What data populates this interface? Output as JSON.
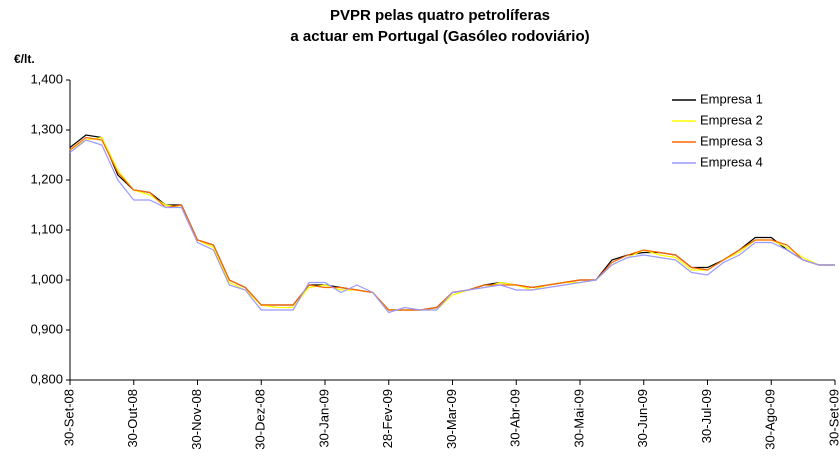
{
  "chart_data": {
    "type": "line",
    "title": "PVPR pelas quatro petrolíferas",
    "subtitle": "a actuar em Portugal (Gasóleo rodoviário)",
    "y_label": "€/lt.",
    "categories": [
      "30-Set-08",
      null,
      null,
      null,
      "30-Out-08",
      null,
      null,
      null,
      "30-Nov-08",
      null,
      null,
      null,
      "30-Dez-08",
      null,
      null,
      null,
      "30-Jan-09",
      null,
      null,
      null,
      "28-Fev-09",
      null,
      null,
      null,
      "30-Mar-09",
      null,
      null,
      null,
      "30-Abr-09",
      null,
      null,
      null,
      "30-Mai-09",
      null,
      null,
      null,
      "30-Jun-09",
      null,
      null,
      null,
      "30-Jul-09",
      null,
      null,
      null,
      "30-Ago-09",
      null,
      null,
      null,
      "30-Set-09"
    ],
    "series": [
      {
        "name": "Empresa 1",
        "color": "#000000",
        "values": [
          1.265,
          1.29,
          1.285,
          1.21,
          1.18,
          1.175,
          1.15,
          1.15,
          1.08,
          1.07,
          1.0,
          0.985,
          0.95,
          0.95,
          0.95,
          0.99,
          0.99,
          0.985,
          0.98,
          0.975,
          0.94,
          0.94,
          0.94,
          0.945,
          0.975,
          0.98,
          0.99,
          0.995,
          0.99,
          0.985,
          0.99,
          0.995,
          1.0,
          1.0,
          1.04,
          1.05,
          1.055,
          1.055,
          1.05,
          1.025,
          1.025,
          1.04,
          1.06,
          1.085,
          1.085,
          1.06,
          1.04,
          1.03,
          1.03
        ]
      },
      {
        "name": "Empresa 2",
        "color": "#ffff00",
        "values": [
          1.26,
          1.28,
          1.285,
          1.22,
          1.18,
          1.17,
          1.15,
          1.145,
          1.08,
          1.065,
          0.995,
          0.98,
          0.95,
          0.945,
          0.945,
          0.985,
          0.99,
          0.98,
          0.98,
          0.975,
          0.94,
          0.94,
          0.94,
          0.94,
          0.97,
          0.98,
          0.985,
          0.995,
          0.99,
          0.98,
          0.99,
          0.995,
          0.995,
          1.0,
          1.03,
          1.045,
          1.06,
          1.05,
          1.045,
          1.02,
          1.02,
          1.04,
          1.055,
          1.08,
          1.08,
          1.065,
          1.045,
          1.03,
          1.03
        ]
      },
      {
        "name": "Empresa 3",
        "color": "#ff6600",
        "values": [
          1.26,
          1.285,
          1.28,
          1.215,
          1.18,
          1.175,
          1.145,
          1.15,
          1.08,
          1.07,
          1.0,
          0.985,
          0.95,
          0.95,
          0.95,
          0.99,
          0.985,
          0.985,
          0.98,
          0.975,
          0.94,
          0.94,
          0.94,
          0.945,
          0.975,
          0.98,
          0.99,
          0.99,
          0.99,
          0.985,
          0.99,
          0.995,
          1.0,
          1.0,
          1.035,
          1.05,
          1.06,
          1.055,
          1.05,
          1.025,
          1.02,
          1.04,
          1.06,
          1.08,
          1.08,
          1.07,
          1.04,
          1.03,
          1.03
        ]
      },
      {
        "name": "Empresa 4",
        "color": "#9999ff",
        "values": [
          1.255,
          1.28,
          1.27,
          1.2,
          1.16,
          1.16,
          1.145,
          1.145,
          1.075,
          1.06,
          0.99,
          0.98,
          0.94,
          0.94,
          0.94,
          0.995,
          0.995,
          0.975,
          0.99,
          0.975,
          0.935,
          0.945,
          0.94,
          0.94,
          0.975,
          0.98,
          0.985,
          0.99,
          0.98,
          0.98,
          0.985,
          0.99,
          0.995,
          1.0,
          1.03,
          1.045,
          1.05,
          1.045,
          1.04,
          1.015,
          1.01,
          1.035,
          1.05,
          1.075,
          1.075,
          1.06,
          1.04,
          1.03,
          1.03
        ]
      }
    ],
    "ylim": [
      0.8,
      1.4
    ],
    "yticks": [
      {
        "value": 0.8,
        "label": "0,800"
      },
      {
        "value": 0.9,
        "label": "0,900"
      },
      {
        "value": 1.0,
        "label": "1,000"
      },
      {
        "value": 1.1,
        "label": "1,100"
      },
      {
        "value": 1.2,
        "label": "1,200"
      },
      {
        "value": 1.3,
        "label": "1,300"
      },
      {
        "value": 1.4,
        "label": "1,400"
      }
    ],
    "grid": false,
    "legend": "upper right"
  }
}
